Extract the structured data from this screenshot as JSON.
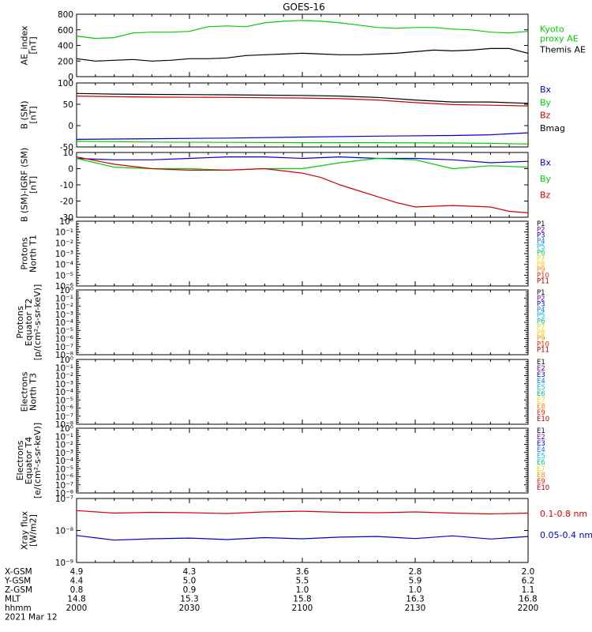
{
  "title": "GOES-16",
  "chart_data": [
    {
      "type": "line",
      "ylabel": "AE_index\n[nT]",
      "ylim": [
        0,
        800
      ],
      "yticks": [
        "0",
        "200",
        "400",
        "600",
        "800"
      ],
      "series": [
        {
          "name": "Kyoto\nproxy AE",
          "color": "#00cc00",
          "x": [
            0,
            5,
            10,
            15,
            20,
            25,
            30,
            35,
            40,
            45,
            50,
            55,
            60,
            65,
            70,
            75,
            80,
            85,
            90,
            95,
            100,
            105,
            110,
            115,
            120
          ],
          "y": [
            520,
            490,
            500,
            560,
            570,
            570,
            580,
            640,
            650,
            640,
            690,
            710,
            720,
            710,
            690,
            660,
            630,
            620,
            630,
            630,
            610,
            600,
            570,
            560,
            580
          ]
        },
        {
          "name": "Themis AE",
          "color": "#000000",
          "x": [
            0,
            5,
            10,
            15,
            20,
            25,
            30,
            35,
            40,
            45,
            50,
            55,
            60,
            65,
            70,
            75,
            80,
            85,
            90,
            95,
            100,
            105,
            110,
            115,
            120
          ],
          "y": [
            230,
            200,
            210,
            220,
            200,
            210,
            230,
            230,
            240,
            270,
            280,
            290,
            300,
            290,
            280,
            280,
            290,
            300,
            320,
            340,
            330,
            340,
            360,
            360,
            300
          ]
        }
      ]
    },
    {
      "type": "line",
      "ylabel": "B (SM)\n[nT]",
      "ylim": [
        -55,
        140
      ],
      "yticks": [
        "-50",
        "0",
        "50",
        "100"
      ],
      "series": [
        {
          "name": "Bx",
          "color": "#0000cc",
          "x": [
            0,
            20,
            40,
            60,
            80,
            100,
            110,
            120
          ],
          "y": [
            -32,
            -30,
            -28,
            -25,
            -22,
            -20,
            -18,
            -12
          ]
        },
        {
          "name": "By",
          "color": "#00cc00",
          "x": [
            0,
            20,
            40,
            60,
            80,
            100,
            110,
            120
          ],
          "y": [
            -38,
            -40,
            -41,
            -42,
            -42,
            -43,
            -44,
            -46
          ]
        },
        {
          "name": "Bz",
          "color": "#cc0000",
          "x": [
            0,
            10,
            20,
            40,
            60,
            70,
            80,
            90,
            100,
            110,
            120
          ],
          "y": [
            100,
            98,
            97,
            96,
            94,
            92,
            88,
            80,
            74,
            72,
            70
          ]
        },
        {
          "name": "Bmag",
          "color": "#000000",
          "x": [
            0,
            10,
            20,
            40,
            60,
            70,
            80,
            90,
            100,
            110,
            120
          ],
          "y": [
            108,
            106,
            105,
            104,
            102,
            100,
            96,
            88,
            82,
            82,
            78
          ]
        }
      ]
    },
    {
      "type": "line",
      "ylabel": "B (SM)-IGRF (SM)\n[nT]",
      "ylim": [
        -32,
        12
      ],
      "yticks": [
        "-30",
        "-20",
        "-10",
        "0",
        "10"
      ],
      "series": [
        {
          "name": "Bx",
          "color": "#0000cc",
          "x": [
            0,
            10,
            20,
            30,
            40,
            50,
            60,
            70,
            80,
            90,
            100,
            110,
            120
          ],
          "y": [
            8,
            7,
            7,
            8,
            9,
            9,
            8,
            9,
            8,
            8,
            7,
            5,
            6
          ]
        },
        {
          "name": "By",
          "color": "#00cc00",
          "x": [
            0,
            10,
            20,
            30,
            40,
            50,
            60,
            70,
            80,
            90,
            100,
            110,
            120
          ],
          "y": [
            8,
            2,
            1,
            1,
            0,
            1,
            1,
            5,
            8,
            7,
            1,
            3,
            2
          ]
        },
        {
          "name": "Bz",
          "color": "#cc0000",
          "x": [
            0,
            10,
            20,
            30,
            40,
            50,
            60,
            65,
            70,
            75,
            80,
            85,
            90,
            100,
            110,
            115,
            120
          ],
          "y": [
            9,
            4,
            1,
            0,
            0,
            1,
            -2,
            -5,
            -10,
            -14,
            -18,
            -22,
            -25,
            -24,
            -25,
            -28,
            -29
          ]
        }
      ]
    },
    {
      "type": "line",
      "ylabel": "Protons\nNorth T1",
      "yticks": [
        "10⁻⁶",
        "10⁻⁵",
        "10⁻⁴",
        "10⁻³",
        "10⁻²",
        "10⁻¹",
        "10⁰"
      ],
      "series": [
        {
          "name": "P1",
          "color": "#000000"
        },
        {
          "name": "P2",
          "color": "#7700aa"
        },
        {
          "name": "P3",
          "color": "#0000cc"
        },
        {
          "name": "P4",
          "color": "#0077ff"
        },
        {
          "name": "P5",
          "color": "#00bbdd"
        },
        {
          "name": "P6",
          "color": "#00bb88"
        },
        {
          "name": "P7",
          "color": "#dddd00"
        },
        {
          "name": "P8",
          "color": "#ffcc00"
        },
        {
          "name": "P9",
          "color": "#ff8800"
        },
        {
          "name": "P10",
          "color": "#ee2200"
        },
        {
          "name": "P11",
          "color": "#aa0000"
        }
      ]
    },
    {
      "type": "line",
      "ylabel": "Protons\nEquator T2\n[p/(cm²-s-sr-keV)]",
      "yticks": [
        "10⁻⁸",
        "10⁻⁷",
        "10⁻⁶",
        "10⁻⁵",
        "10⁻⁴",
        "10⁻³",
        "10⁻²",
        "10⁻¹",
        "10⁰"
      ],
      "series": [
        {
          "name": "P1",
          "color": "#000000"
        },
        {
          "name": "P2",
          "color": "#7700aa"
        },
        {
          "name": "P3",
          "color": "#0000cc"
        },
        {
          "name": "P4",
          "color": "#0077ff"
        },
        {
          "name": "P5",
          "color": "#00bbdd"
        },
        {
          "name": "P6",
          "color": "#00bb88"
        },
        {
          "name": "P7",
          "color": "#dddd00"
        },
        {
          "name": "P8",
          "color": "#ffcc00"
        },
        {
          "name": "P9",
          "color": "#ff8800"
        },
        {
          "name": "P10",
          "color": "#ee2200"
        },
        {
          "name": "P11",
          "color": "#aa0000"
        }
      ]
    },
    {
      "type": "line",
      "ylabel": "Electrons\nNorth T3",
      "yticks": [
        "10⁻⁸",
        "10⁻⁷",
        "10⁻⁶",
        "10⁻⁵",
        "10⁻⁴",
        "10⁻³",
        "10⁻²",
        "10⁻¹",
        "10⁰"
      ],
      "series": [
        {
          "name": "E1",
          "color": "#000000"
        },
        {
          "name": "E2",
          "color": "#7700aa"
        },
        {
          "name": "E3",
          "color": "#0000cc"
        },
        {
          "name": "E4",
          "color": "#0077ff"
        },
        {
          "name": "E5",
          "color": "#00bbdd"
        },
        {
          "name": "E6",
          "color": "#00bb88"
        },
        {
          "name": "E7",
          "color": "#dddd00"
        },
        {
          "name": "E8",
          "color": "#ff8800"
        },
        {
          "name": "E9",
          "color": "#ee2200"
        },
        {
          "name": "E10",
          "color": "#aa0000"
        }
      ]
    },
    {
      "type": "line",
      "ylabel": "Electrons\nEquator T4\n[e/(cm²-s-sr-keV)]",
      "yticks": [
        "10⁻⁸",
        "10⁻⁷",
        "10⁻⁶",
        "10⁻⁵",
        "10⁻⁴",
        "10⁻³",
        "10⁻²",
        "10⁻¹",
        "10⁰"
      ],
      "series": [
        {
          "name": "E1",
          "color": "#000000"
        },
        {
          "name": "E2",
          "color": "#7700aa"
        },
        {
          "name": "E3",
          "color": "#0000cc"
        },
        {
          "name": "E4",
          "color": "#0077ff"
        },
        {
          "name": "E5",
          "color": "#00bbdd"
        },
        {
          "name": "E6",
          "color": "#00bb88"
        },
        {
          "name": "E7",
          "color": "#dddd00"
        },
        {
          "name": "E8",
          "color": "#ff8800"
        },
        {
          "name": "E9",
          "color": "#ee2200"
        },
        {
          "name": "E10",
          "color": "#aa0000"
        }
      ]
    },
    {
      "type": "line",
      "ylabel": "Xray flux\n[W/m2]",
      "ylog": true,
      "ylim": [
        1e-09,
        1e-07
      ],
      "yticks": [
        "10⁻⁹",
        "10⁻⁸",
        "10⁻⁷"
      ],
      "series": [
        {
          "name": "0.1-0.8 nm",
          "color": "#dd0000",
          "x": [
            0,
            10,
            20,
            30,
            40,
            50,
            60,
            70,
            80,
            90,
            100,
            110,
            120
          ],
          "y": [
            4.2e-08,
            3.5e-08,
            3.7e-08,
            3.6e-08,
            3.4e-08,
            3.8e-08,
            4e-08,
            3.7e-08,
            3.6e-08,
            3.8e-08,
            3.5e-08,
            3.3e-08,
            3.5e-08
          ]
        },
        {
          "name": "0.05-0.4 nm",
          "color": "#0000cc",
          "x": [
            0,
            10,
            20,
            30,
            40,
            50,
            60,
            70,
            80,
            90,
            100,
            110,
            120
          ],
          "y": [
            7e-09,
            5e-09,
            5.5e-09,
            5.8e-09,
            5.2e-09,
            6e-09,
            5.5e-09,
            6.2e-09,
            6.5e-09,
            5.6e-09,
            6.8e-09,
            5.4e-09,
            6.5e-09
          ]
        }
      ]
    }
  ],
  "footer": {
    "rows": [
      {
        "label": "X-GSM",
        "values": [
          "4.9",
          "4.3",
          "3.6",
          "2.8",
          "2.0"
        ]
      },
      {
        "label": "Y-GSM",
        "values": [
          "4.4",
          "5.0",
          "5.5",
          "5.9",
          "6.2"
        ]
      },
      {
        "label": "Z-GSM",
        "values": [
          "0.8",
          "0.9",
          "1.0",
          "1.0",
          "1.1"
        ]
      },
      {
        "label": "MLT",
        "values": [
          "14.8",
          "15.3",
          "15.8",
          "16.3",
          "16.8"
        ]
      },
      {
        "label": "hhmm",
        "values": [
          "2000",
          "2030",
          "2100",
          "2130",
          "2200"
        ]
      }
    ],
    "date": "2021 Mar 12"
  }
}
